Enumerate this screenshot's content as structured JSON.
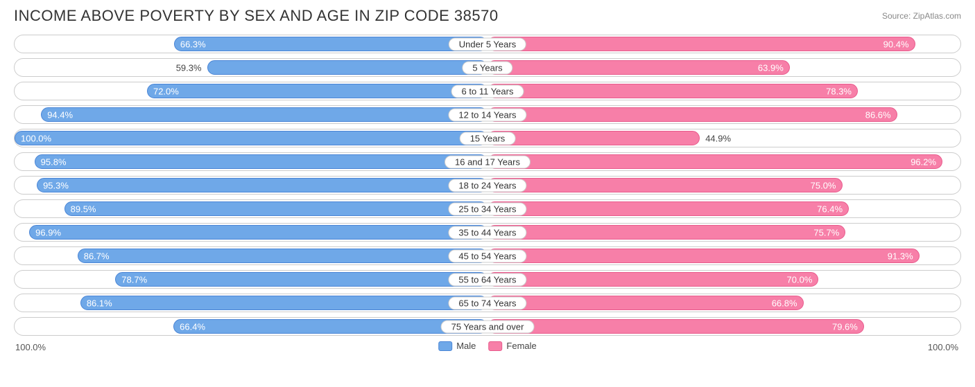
{
  "title": "INCOME ABOVE POVERTY BY SEX AND AGE IN ZIP CODE 38570",
  "source": "Source: ZipAtlas.com",
  "colors": {
    "male": {
      "fill": "#6fa8e8",
      "border": "#4a85d6"
    },
    "female": {
      "fill": "#f77fa8",
      "border": "#e85a8c"
    },
    "row_border": "#cccccc",
    "background": "#ffffff",
    "text": "#444444"
  },
  "axis": {
    "left": "100.0%",
    "right": "100.0%"
  },
  "legend": [
    {
      "key": "male",
      "label": "Male"
    },
    {
      "key": "female",
      "label": "Female"
    }
  ],
  "rows": [
    {
      "label": "Under 5 Years",
      "male": 66.3,
      "female": 90.4
    },
    {
      "label": "5 Years",
      "male": 59.3,
      "female": 63.9
    },
    {
      "label": "6 to 11 Years",
      "male": 72.0,
      "female": 78.3
    },
    {
      "label": "12 to 14 Years",
      "male": 94.4,
      "female": 86.6
    },
    {
      "label": "15 Years",
      "male": 100.0,
      "female": 44.9
    },
    {
      "label": "16 and 17 Years",
      "male": 95.8,
      "female": 96.2
    },
    {
      "label": "18 to 24 Years",
      "male": 95.3,
      "female": 75.0
    },
    {
      "label": "25 to 34 Years",
      "male": 89.5,
      "female": 76.4
    },
    {
      "label": "35 to 44 Years",
      "male": 96.9,
      "female": 75.7
    },
    {
      "label": "45 to 54 Years",
      "male": 86.7,
      "female": 91.3
    },
    {
      "label": "55 to 64 Years",
      "male": 78.7,
      "female": 70.0
    },
    {
      "label": "65 to 74 Years",
      "male": 86.1,
      "female": 66.8
    },
    {
      "label": "75 Years and over",
      "male": 66.4,
      "female": 79.6
    }
  ],
  "label_inside_threshold": 60
}
